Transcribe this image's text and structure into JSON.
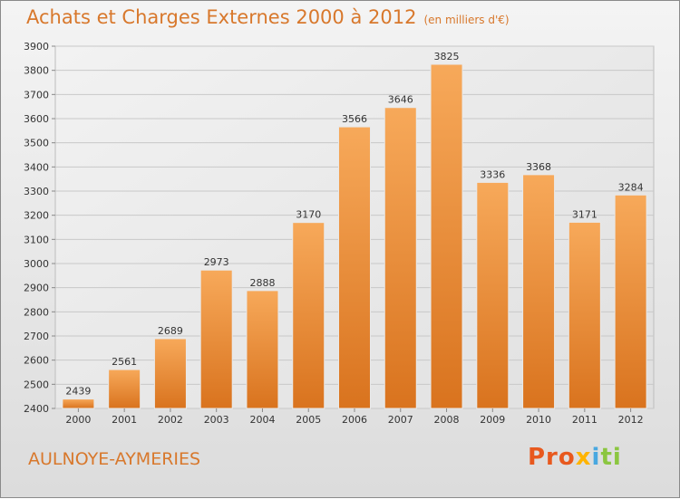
{
  "chart_data": {
    "type": "bar",
    "title": "Achats et Charges Externes 2000 à 2012",
    "subtitle": "(en milliers d'€)",
    "categories": [
      "2000",
      "2001",
      "2002",
      "2003",
      "2004",
      "2005",
      "2006",
      "2007",
      "2008",
      "2009",
      "2010",
      "2011",
      "2012"
    ],
    "values": [
      2439,
      2561,
      2689,
      2973,
      2888,
      3170,
      3566,
      3646,
      3825,
      3336,
      3368,
      3171,
      3284
    ],
    "ylim": [
      2400,
      3900
    ],
    "yticks": [
      2400,
      2500,
      2600,
      2700,
      2800,
      2900,
      3000,
      3100,
      3200,
      3300,
      3400,
      3500,
      3600,
      3700,
      3800,
      3900
    ],
    "grid": true,
    "bar_color": "#f0923a",
    "xlabel": "",
    "ylabel": ""
  },
  "footer": {
    "place": "AULNOYE-AYMERIES",
    "logo_parts": [
      "Pro",
      "x",
      "i",
      "ti"
    ]
  }
}
